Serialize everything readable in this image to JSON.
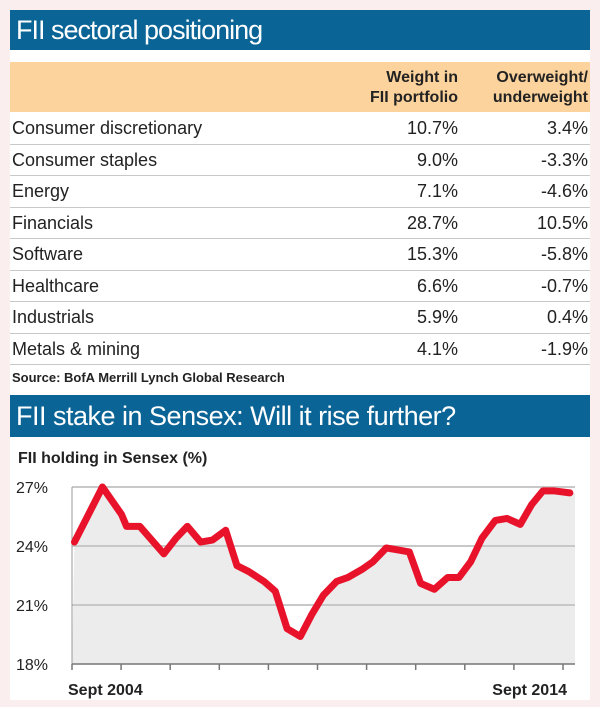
{
  "table": {
    "title": "FII sectoral positioning",
    "columns": [
      "",
      "Weight in FII portfolio",
      "Overweight/ underweight"
    ],
    "header_lines": {
      "weight": [
        "Weight in",
        "FII portfolio"
      ],
      "over": [
        "Overweight/",
        "underweight"
      ]
    },
    "rows": [
      [
        "Consumer discretionary",
        "10.7%",
        "3.4%"
      ],
      [
        "Consumer staples",
        "9.0%",
        "-3.3%"
      ],
      [
        "Energy",
        "7.1%",
        "-4.6%"
      ],
      [
        "Financials",
        "28.7%",
        "10.5%"
      ],
      [
        "Software",
        "15.3%",
        "-5.8%"
      ],
      [
        "Healthcare",
        "6.6%",
        "-0.7%"
      ],
      [
        "Industrials",
        "5.9%",
        "0.4%"
      ],
      [
        "Metals & mining",
        "4.1%",
        "-1.9%"
      ]
    ],
    "source": "Source: BofA Merrill Lynch Global Research",
    "header_color": "#fcd39c"
  },
  "chart_data": {
    "type": "area",
    "title": "FII stake in Sensex: Will it rise further?",
    "ylabel": "FII holding in Sensex (%)",
    "ylim": [
      18,
      27
    ],
    "yticks": [
      "18%",
      "21%",
      "24%",
      "27%"
    ],
    "xlim": [
      2004.67,
      2014.67
    ],
    "xtick_labels": [
      "Sept 2004",
      "Sept 2014"
    ],
    "grid": true,
    "line_color": "#e8132b",
    "fill_color": "#ececec",
    "title_bar_color": "#0b6496",
    "x": [
      2004.72,
      2005.29,
      2005.68,
      2005.78,
      2006.05,
      2006.54,
      2006.79,
      2007.02,
      2007.29,
      2007.53,
      2007.8,
      2008.03,
      2008.27,
      2008.58,
      2008.81,
      2009.05,
      2009.32,
      2009.55,
      2009.79,
      2010.06,
      2010.29,
      2010.57,
      2010.8,
      2011.07,
      2011.31,
      2011.54,
      2011.77,
      2012.05,
      2012.32,
      2012.55,
      2012.79,
      2013.02,
      2013.29,
      2013.53,
      2013.8,
      2014.03,
      2014.26,
      2014.5,
      2014.81
    ],
    "y": [
      24.2,
      27.0,
      25.6,
      25.0,
      25.0,
      23.6,
      24.4,
      25.0,
      24.2,
      24.3,
      24.8,
      23.0,
      22.7,
      22.2,
      21.7,
      19.8,
      19.4,
      20.5,
      21.5,
      22.2,
      22.4,
      22.8,
      23.2,
      23.9,
      23.8,
      23.7,
      22.1,
      21.8,
      22.4,
      22.4,
      23.2,
      24.4,
      25.3,
      25.4,
      25.1,
      26.1,
      26.8,
      26.8,
      26.7
    ]
  }
}
